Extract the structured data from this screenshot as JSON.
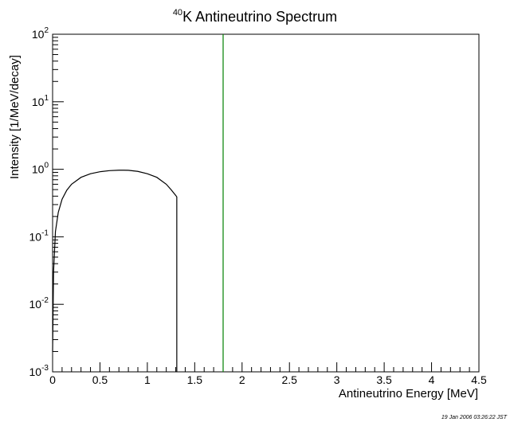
{
  "chart_data": {
    "type": "line",
    "title_sup": "40",
    "title_main": "K Antineutrino Spectrum",
    "xlabel": "Antineutrino Energy [MeV]",
    "ylabel": "Intensity [1/MeV/decay]",
    "xlim": [
      0,
      4.5
    ],
    "ylim": [
      0.001,
      100
    ],
    "yscale": "log",
    "grid": false,
    "x_ticks": [
      "0",
      "0.5",
      "1",
      "1.5",
      "2",
      "2.5",
      "3",
      "3.5",
      "4",
      "4.5"
    ],
    "y_ticks": [
      {
        "base": "10",
        "exp": "-3"
      },
      {
        "base": "10",
        "exp": "-2"
      },
      {
        "base": "10",
        "exp": "-1"
      },
      {
        "base": "10",
        "exp": "0"
      },
      {
        "base": "10",
        "exp": "1"
      },
      {
        "base": "10",
        "exp": "2"
      }
    ],
    "series": [
      {
        "color": "#000000",
        "x": [
          0.0,
          0.01,
          0.03,
          0.06,
          0.1,
          0.15,
          0.2,
          0.3,
          0.4,
          0.5,
          0.6,
          0.7,
          0.75,
          0.8,
          0.9,
          1.0,
          1.1,
          1.2,
          1.25,
          1.3,
          1.311,
          1.311
        ],
        "y": [
          0.002,
          0.03,
          0.12,
          0.23,
          0.36,
          0.49,
          0.6,
          0.76,
          0.86,
          0.92,
          0.955,
          0.97,
          0.97,
          0.965,
          0.93,
          0.86,
          0.76,
          0.6,
          0.5,
          0.41,
          0.39,
          0.001
        ]
      },
      {
        "color": "#008000",
        "x": [
          1.8,
          1.8
        ],
        "y": [
          0.001,
          100
        ]
      }
    ]
  },
  "footer": {
    "timestamp": "19 Jan 2006 03:26:22 JST"
  }
}
